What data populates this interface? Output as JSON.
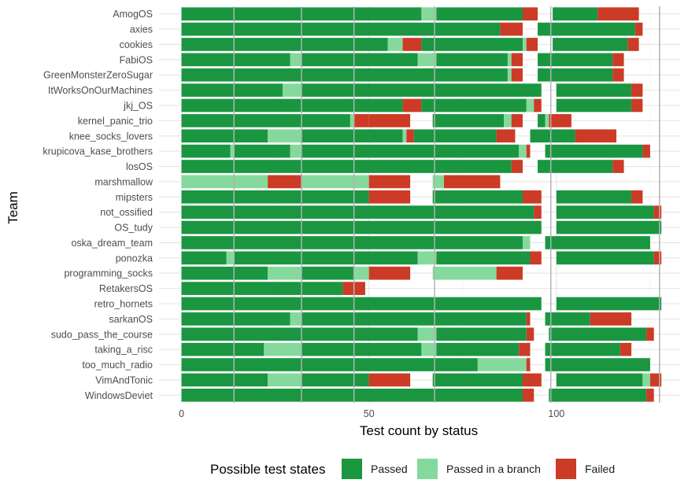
{
  "chart_data": {
    "type": "bar",
    "orientation": "horizontal",
    "stacked": true,
    "xlabel": "Test count by status",
    "ylabel": "Team",
    "xlim": [
      -6,
      133
    ],
    "x_ticks": [
      0,
      50,
      100
    ],
    "grid": true,
    "categories": [
      "AmogOS",
      "axies",
      "cookies",
      "FabiOS",
      "GreenMonsterZeroSugar",
      "ItWorksOnOurMachines",
      "jkj_OS",
      "kernel_panic_trio",
      "knee_socks_lovers",
      "krupicova_kase_brothers",
      "losOS",
      "marshmallow",
      "mipsters",
      "not_ossified",
      "OS_tudy",
      "oska_dream_team",
      "ponozka",
      "programming_socks",
      "RetakersOS",
      "retro_hornets",
      "sarkanOS",
      "sudo_pass_the_course",
      "taking_a_risc",
      "too_much_radio",
      "VimAndTonic",
      "WindowsDeviet"
    ],
    "segments": [
      [
        [
          "p",
          64
        ],
        [
          "b",
          4
        ],
        [
          "p",
          23
        ],
        [
          "f",
          4
        ],
        [
          "g",
          4
        ],
        [
          "p",
          12
        ],
        [
          "f",
          11
        ]
      ],
      [
        [
          "p",
          85
        ],
        [
          "f",
          6
        ],
        [
          "g",
          4
        ],
        [
          "p",
          26
        ],
        [
          "f",
          2
        ]
      ],
      [
        [
          "p",
          55
        ],
        [
          "b",
          4
        ],
        [
          "f",
          5
        ],
        [
          "p",
          27
        ],
        [
          "b",
          1
        ],
        [
          "f",
          3
        ],
        [
          "g",
          4
        ],
        [
          "p",
          20
        ],
        [
          "f",
          3
        ]
      ],
      [
        [
          "p",
          29
        ],
        [
          "b",
          3
        ],
        [
          "p",
          31
        ],
        [
          "b",
          5
        ],
        [
          "p",
          19
        ],
        [
          "b",
          1
        ],
        [
          "f",
          3
        ],
        [
          "g",
          4
        ],
        [
          "p",
          20
        ],
        [
          "f",
          3
        ]
      ],
      [
        [
          "p",
          87
        ],
        [
          "b",
          1
        ],
        [
          "f",
          3
        ],
        [
          "g",
          4
        ],
        [
          "p",
          20
        ],
        [
          "f",
          3
        ]
      ],
      [
        [
          "p",
          27
        ],
        [
          "b",
          5
        ],
        [
          "p",
          64
        ],
        [
          "g",
          4
        ],
        [
          "p",
          20
        ],
        [
          "f",
          3
        ]
      ],
      [
        [
          "p",
          59
        ],
        [
          "f",
          5
        ],
        [
          "p",
          28
        ],
        [
          "b",
          2
        ],
        [
          "f",
          2
        ],
        [
          "g",
          4
        ],
        [
          "p",
          20
        ],
        [
          "f",
          3
        ]
      ],
      [
        [
          "p",
          45
        ],
        [
          "b",
          1
        ],
        [
          "f",
          4
        ],
        [
          "f",
          11
        ],
        [
          "g",
          6
        ],
        [
          "p",
          19
        ],
        [
          "b",
          2
        ],
        [
          "f",
          3
        ],
        [
          "g",
          4
        ],
        [
          "p",
          2
        ],
        [
          "b",
          1
        ],
        [
          "f",
          6
        ]
      ],
      [
        [
          "p",
          23
        ],
        [
          "b",
          9
        ],
        [
          "p",
          27
        ],
        [
          "b",
          1
        ],
        [
          "f",
          2
        ],
        [
          "p",
          22
        ],
        [
          "f",
          5
        ],
        [
          "g",
          4
        ],
        [
          "p",
          12
        ],
        [
          "f",
          11
        ]
      ],
      [
        [
          "p",
          13
        ],
        [
          "b",
          1
        ],
        [
          "p",
          15
        ],
        [
          "b",
          3
        ],
        [
          "p",
          58
        ],
        [
          "b",
          2
        ],
        [
          "f",
          1
        ],
        [
          "g",
          4
        ],
        [
          "p",
          26
        ],
        [
          "f",
          2
        ]
      ],
      [
        [
          "p",
          88
        ],
        [
          "f",
          3
        ],
        [
          "g",
          4
        ],
        [
          "p",
          20
        ],
        [
          "f",
          3
        ]
      ],
      [
        [
          "b",
          23
        ],
        [
          "f",
          9
        ],
        [
          "b",
          18
        ],
        [
          "f",
          11
        ],
        [
          "g",
          6
        ],
        [
          "b",
          3
        ],
        [
          "f",
          15
        ]
      ],
      [
        [
          "p",
          50
        ],
        [
          "f",
          11
        ],
        [
          "g",
          6
        ],
        [
          "p",
          24
        ],
        [
          "f",
          5
        ],
        [
          "g",
          4
        ],
        [
          "p",
          20
        ],
        [
          "f",
          3
        ]
      ],
      [
        [
          "p",
          94
        ],
        [
          "f",
          2
        ],
        [
          "g",
          4
        ],
        [
          "p",
          26
        ],
        [
          "f",
          2
        ]
      ],
      [
        [
          "p",
          96
        ],
        [
          "g",
          4
        ],
        [
          "p",
          28
        ]
      ],
      [
        [
          "p",
          91
        ],
        [
          "b",
          2
        ],
        [
          "g",
          4
        ],
        [
          "p",
          28
        ]
      ],
      [
        [
          "p",
          12
        ],
        [
          "b",
          2
        ],
        [
          "p",
          49
        ],
        [
          "b",
          5
        ],
        [
          "p",
          25
        ],
        [
          "f",
          3
        ],
        [
          "g",
          4
        ],
        [
          "p",
          26
        ],
        [
          "f",
          2
        ]
      ],
      [
        [
          "p",
          23
        ],
        [
          "b",
          9
        ],
        [
          "p",
          14
        ],
        [
          "b",
          4
        ],
        [
          "f",
          11
        ],
        [
          "g",
          6
        ],
        [
          "b",
          17
        ],
        [
          "f",
          7
        ]
      ],
      [
        [
          "p",
          43
        ],
        [
          "f",
          6
        ]
      ],
      [
        [
          "p",
          96
        ],
        [
          "g",
          4
        ],
        [
          "p",
          28
        ]
      ],
      [
        [
          "p",
          29
        ],
        [
          "b",
          3
        ],
        [
          "p",
          60
        ],
        [
          "f",
          1
        ],
        [
          "g",
          4
        ],
        [
          "p",
          12
        ],
        [
          "f",
          11
        ]
      ],
      [
        [
          "p",
          63
        ],
        [
          "b",
          5
        ],
        [
          "p",
          24
        ],
        [
          "f",
          2
        ],
        [
          "g",
          4
        ],
        [
          "p",
          26
        ],
        [
          "f",
          2
        ]
      ],
      [
        [
          "p",
          22
        ],
        [
          "b",
          10
        ],
        [
          "p",
          32
        ],
        [
          "b",
          4
        ],
        [
          "p",
          22
        ],
        [
          "f",
          3
        ],
        [
          "g",
          4
        ],
        [
          "p",
          20
        ],
        [
          "f",
          3
        ]
      ],
      [
        [
          "p",
          79
        ],
        [
          "b",
          13
        ],
        [
          "f",
          1
        ],
        [
          "g",
          4
        ],
        [
          "p",
          28
        ]
      ],
      [
        [
          "p",
          23
        ],
        [
          "b",
          9
        ],
        [
          "p",
          18
        ],
        [
          "f",
          11
        ],
        [
          "g",
          6
        ],
        [
          "p",
          24
        ],
        [
          "f",
          5
        ],
        [
          "g",
          4
        ],
        [
          "p",
          23
        ],
        [
          "b",
          2
        ],
        [
          "f",
          3
        ]
      ],
      [
        [
          "p",
          91
        ],
        [
          "f",
          3
        ],
        [
          "g",
          4
        ],
        [
          "p",
          26
        ],
        [
          "f",
          2
        ]
      ]
    ],
    "vlines": [
      14,
      32,
      46,
      67.5,
      98.5,
      127.5
    ],
    "legend": {
      "title": "Possible test states",
      "position": "bottom",
      "items": [
        {
          "key": "p",
          "label": "Passed",
          "color": "#1a9641"
        },
        {
          "key": "b",
          "label": "Passed in a branch",
          "color": "#86d99c"
        },
        {
          "key": "f",
          "label": "Failed",
          "color": "#cc3b25"
        }
      ]
    },
    "colors": {
      "background": "#ffffff",
      "grid_major": "#e5e5e5",
      "grid_minor": "#f2f2f2",
      "vline": "#b3b3b3"
    }
  }
}
